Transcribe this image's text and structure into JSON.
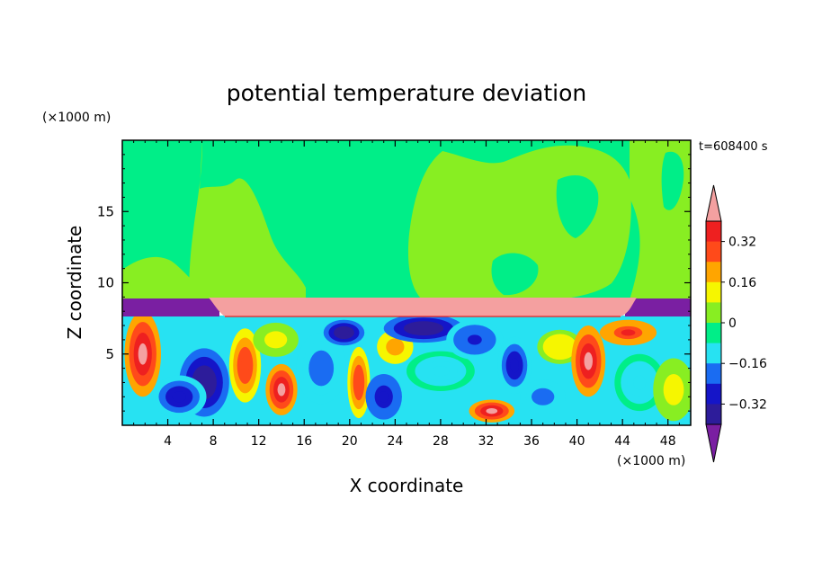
{
  "chart_data": {
    "type": "heatmap",
    "title": "potential temperature deviation",
    "xlabel": "X coordinate",
    "ylabel": "Z coordinate",
    "x_unit_label": "(×1000 m)",
    "y_unit_label": "(×1000 m)",
    "time_label": "t=608400 s",
    "xlim": [
      0,
      50
    ],
    "ylim": [
      0,
      20
    ],
    "x_ticks": [
      4,
      8,
      12,
      16,
      20,
      24,
      28,
      32,
      36,
      40,
      44,
      48
    ],
    "y_ticks": [
      5,
      10,
      15
    ],
    "colorbar": {
      "ticks": [
        0.32,
        0.16,
        0,
        -0.16,
        -0.32
      ],
      "tick_labels": [
        "0.32",
        "0.16",
        "0",
        "−0.16",
        "−0.32"
      ],
      "levels": [
        -0.4,
        -0.32,
        -0.24,
        -0.16,
        -0.08,
        0,
        0.08,
        0.16,
        0.24,
        0.32,
        0.4
      ],
      "colors_low_to_high": [
        "#7a1fa2",
        "#2d1c9a",
        "#1515c8",
        "#1a6cf2",
        "#27e2f2",
        "#00ee88",
        "#88ee22",
        "#f6f600",
        "#ffa500",
        "#ff4a1a",
        "#ee2020",
        "#f4a0a0"
      ],
      "extend": "both"
    },
    "regions": {
      "upper_layer": {
        "z_range": [
          9,
          20
        ],
        "values": [
          0,
          0.08
        ],
        "description_colors": [
          "#00ee88",
          "#88ee22"
        ]
      },
      "inversion_band": {
        "z_range": [
          7.7,
          9
        ],
        "x_range": [
          9,
          44
        ],
        "value": 0.45
      },
      "side_bands": {
        "z_range": [
          7.7,
          9
        ],
        "x_ranges": [
          [
            0,
            9
          ],
          [
            44,
            50
          ]
        ],
        "value": -0.45
      },
      "lower_layer": {
        "z_range": [
          0,
          7.7
        ],
        "value_range": [
          -0.45,
          0.45
        ]
      }
    },
    "blobs": [
      {
        "x": 1.8,
        "z": 5.0,
        "rx": 1.6,
        "rz": 3.0,
        "v": 0.45
      },
      {
        "x": 7.2,
        "z": 3.0,
        "rx": 2.2,
        "rz": 2.4,
        "v": -0.4
      },
      {
        "x": 5.0,
        "z": 2.0,
        "rx": 2.4,
        "rz": 1.5,
        "v": -0.3
      },
      {
        "x": 10.8,
        "z": 4.2,
        "rx": 1.4,
        "rz": 2.6,
        "v": 0.3
      },
      {
        "x": 14.0,
        "z": 2.5,
        "rx": 1.4,
        "rz": 1.8,
        "v": 0.42
      },
      {
        "x": 13.5,
        "z": 6.0,
        "rx": 2.0,
        "rz": 1.2,
        "v": 0.1
      },
      {
        "x": 17.5,
        "z": 4.0,
        "rx": 2.2,
        "rz": 2.5,
        "v": -0.22
      },
      {
        "x": 19.5,
        "z": 6.5,
        "rx": 1.8,
        "rz": 0.9,
        "v": -0.4
      },
      {
        "x": 20.8,
        "z": 3.0,
        "rx": 1.0,
        "rz": 2.5,
        "v": 0.3
      },
      {
        "x": 23.0,
        "z": 2.0,
        "rx": 1.6,
        "rz": 1.6,
        "v": -0.32
      },
      {
        "x": 24.0,
        "z": 5.5,
        "rx": 1.6,
        "rz": 1.2,
        "v": 0.2
      },
      {
        "x": 26.5,
        "z": 6.8,
        "rx": 3.5,
        "rz": 1.0,
        "v": -0.4
      },
      {
        "x": 28.0,
        "z": 3.8,
        "rx": 3.0,
        "rz": 1.4,
        "v": -0.12
      },
      {
        "x": 31.0,
        "z": 6.0,
        "rx": 2.5,
        "rz": 1.4,
        "v": -0.25
      },
      {
        "x": 32.5,
        "z": 1.0,
        "rx": 2.0,
        "rz": 0.8,
        "v": 0.4
      },
      {
        "x": 34.5,
        "z": 4.2,
        "rx": 1.5,
        "rz": 2.0,
        "v": -0.3
      },
      {
        "x": 37.0,
        "z": 2.0,
        "rx": 2.0,
        "rz": 1.2,
        "v": -0.2
      },
      {
        "x": 38.5,
        "z": 5.5,
        "rx": 2.0,
        "rz": 1.2,
        "v": 0.12
      },
      {
        "x": 41.0,
        "z": 4.5,
        "rx": 1.5,
        "rz": 2.5,
        "v": 0.4
      },
      {
        "x": 44.5,
        "z": 6.5,
        "rx": 2.5,
        "rz": 0.9,
        "v": 0.32
      },
      {
        "x": 45.5,
        "z": 3.0,
        "rx": 2.2,
        "rz": 2.0,
        "v": -0.14
      },
      {
        "x": 48.5,
        "z": 2.5,
        "rx": 1.8,
        "rz": 2.2,
        "v": 0.1
      }
    ]
  }
}
